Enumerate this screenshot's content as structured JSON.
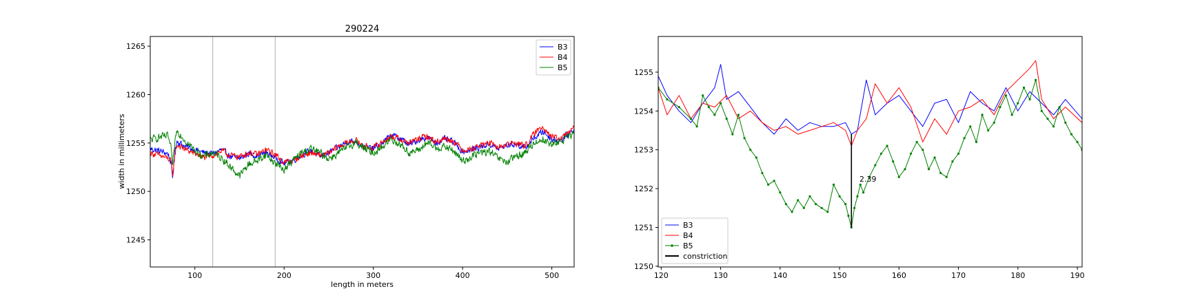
{
  "chart_data": [
    {
      "type": "line",
      "title": "290224",
      "xlabel": "length in meters",
      "ylabel": "width in millimeters",
      "xlim": [
        50,
        525
      ],
      "ylim": [
        1242.2,
        1266.0
      ],
      "xticks": [
        100,
        200,
        300,
        400,
        500
      ],
      "yticks": [
        1245,
        1250,
        1255,
        1260,
        1265
      ],
      "vlines": [
        120,
        190
      ],
      "legend_position": "top-right",
      "grid": false,
      "series": [
        {
          "name": "B3",
          "color": "#0000ff",
          "x_start": 50,
          "x_end": 525,
          "noise": 0.45,
          "x": [
            50,
            60,
            70,
            73,
            75,
            78,
            80,
            90,
            100,
            110,
            120,
            130,
            140,
            150,
            160,
            170,
            180,
            190,
            200,
            210,
            220,
            230,
            240,
            250,
            260,
            270,
            280,
            290,
            300,
            310,
            320,
            330,
            340,
            350,
            360,
            370,
            380,
            390,
            400,
            410,
            420,
            430,
            440,
            450,
            460,
            470,
            480,
            490,
            500,
            510,
            525
          ],
          "y": [
            1254.4,
            1254.2,
            1253.9,
            1253.0,
            1251.4,
            1254.5,
            1255.2,
            1254.6,
            1254.3,
            1254.0,
            1253.9,
            1254.3,
            1253.6,
            1253.4,
            1253.9,
            1253.7,
            1254.0,
            1253.5,
            1252.9,
            1253.2,
            1253.8,
            1254.2,
            1253.6,
            1254.0,
            1254.5,
            1255.1,
            1255.2,
            1254.6,
            1254.4,
            1255.0,
            1255.8,
            1255.5,
            1254.8,
            1255.3,
            1255.6,
            1255.0,
            1255.4,
            1255.1,
            1254.1,
            1254.3,
            1254.6,
            1254.9,
            1254.4,
            1254.8,
            1254.9,
            1254.5,
            1255.5,
            1256.2,
            1255.4,
            1255.3,
            1256.4
          ]
        },
        {
          "name": "B4",
          "color": "#ff0000",
          "x_start": 50,
          "x_end": 525,
          "noise": 0.45,
          "x": [
            50,
            60,
            70,
            73,
            75,
            78,
            80,
            90,
            100,
            110,
            120,
            130,
            140,
            150,
            160,
            170,
            180,
            190,
            200,
            210,
            220,
            230,
            240,
            250,
            260,
            270,
            280,
            290,
            300,
            310,
            320,
            330,
            340,
            350,
            360,
            370,
            380,
            390,
            400,
            410,
            420,
            430,
            440,
            450,
            460,
            470,
            480,
            490,
            500,
            510,
            525
          ],
          "y": [
            1254.0,
            1253.7,
            1253.4,
            1253.1,
            1251.7,
            1254.0,
            1254.8,
            1254.3,
            1253.9,
            1253.5,
            1253.7,
            1254.2,
            1253.7,
            1253.6,
            1254.0,
            1253.8,
            1254.3,
            1253.8,
            1253.0,
            1253.2,
            1253.7,
            1254.0,
            1253.7,
            1253.9,
            1254.6,
            1255.0,
            1255.3,
            1254.6,
            1254.5,
            1255.1,
            1255.7,
            1255.4,
            1255.0,
            1255.4,
            1255.7,
            1255.1,
            1255.5,
            1255.2,
            1254.3,
            1254.4,
            1254.8,
            1255.0,
            1254.5,
            1254.9,
            1255.0,
            1254.7,
            1255.9,
            1256.8,
            1255.6,
            1255.4,
            1256.6
          ]
        },
        {
          "name": "B5",
          "color": "#008000",
          "x_start": 50,
          "x_end": 525,
          "noise": 0.55,
          "x": [
            50,
            60,
            70,
            73,
            75,
            78,
            80,
            90,
            100,
            110,
            120,
            130,
            140,
            150,
            160,
            170,
            180,
            190,
            200,
            210,
            220,
            230,
            240,
            250,
            260,
            270,
            280,
            290,
            300,
            310,
            320,
            330,
            340,
            350,
            360,
            370,
            380,
            390,
            400,
            410,
            420,
            430,
            440,
            450,
            460,
            470,
            480,
            490,
            500,
            510,
            525
          ],
          "y": [
            1255.3,
            1255.6,
            1255.7,
            1254.5,
            1252.6,
            1255.4,
            1256.3,
            1255.2,
            1254.2,
            1253.6,
            1254.0,
            1253.5,
            1252.5,
            1251.6,
            1252.8,
            1253.2,
            1253.8,
            1252.9,
            1252.3,
            1253.2,
            1254.0,
            1254.4,
            1254.0,
            1253.4,
            1253.9,
            1254.5,
            1255.1,
            1254.4,
            1254.0,
            1254.6,
            1255.4,
            1254.9,
            1254.0,
            1254.2,
            1255.0,
            1254.5,
            1254.6,
            1254.2,
            1253.1,
            1253.6,
            1254.0,
            1254.1,
            1253.4,
            1253.0,
            1253.6,
            1254.0,
            1255.0,
            1255.4,
            1254.8,
            1255.2,
            1255.9
          ]
        }
      ]
    },
    {
      "type": "line",
      "title": "",
      "xlabel": "",
      "ylabel": "",
      "xlim": [
        119.5,
        190.8
      ],
      "ylim": [
        1249.98,
        1255.92
      ],
      "xticks": [
        120,
        130,
        140,
        150,
        160,
        170,
        180,
        190
      ],
      "yticks": [
        1250,
        1251,
        1252,
        1253,
        1254,
        1255
      ],
      "legend_position": "bottom-left",
      "grid": false,
      "annotation": {
        "text": "2.39",
        "x": 152.8,
        "y": 1252.2
      },
      "series": [
        {
          "name": "B3",
          "color": "#0000ff",
          "marker": false,
          "x": [
            119.5,
            121,
            123,
            125,
            127,
            129,
            130,
            131,
            133,
            135,
            137,
            139,
            141,
            143,
            145,
            147,
            149,
            151,
            152,
            153,
            154.5,
            156,
            158,
            160,
            162,
            164,
            166,
            168,
            170,
            172,
            174,
            176,
            178,
            180,
            182,
            184,
            186,
            188,
            190.8
          ],
          "y": [
            1254.9,
            1254.4,
            1254.0,
            1253.7,
            1254.2,
            1254.6,
            1255.2,
            1254.3,
            1254.5,
            1254.1,
            1253.7,
            1253.4,
            1253.8,
            1253.5,
            1253.7,
            1253.6,
            1253.6,
            1253.7,
            1253.4,
            1253.5,
            1254.8,
            1253.9,
            1254.2,
            1254.4,
            1254.0,
            1253.6,
            1254.2,
            1254.3,
            1253.7,
            1254.5,
            1254.2,
            1254.0,
            1254.6,
            1254.0,
            1254.5,
            1254.2,
            1253.9,
            1254.3,
            1253.8
          ]
        },
        {
          "name": "B4",
          "color": "#ff0000",
          "marker": false,
          "x": [
            119.5,
            121,
            123,
            125,
            127,
            129,
            131,
            133,
            135,
            137,
            139,
            141,
            143,
            145,
            147,
            149,
            151,
            152,
            153,
            154.5,
            156,
            158,
            160,
            162,
            164,
            166,
            168,
            170,
            172,
            174,
            176,
            178,
            180,
            182,
            183,
            184,
            186,
            188,
            190.8
          ],
          "y": [
            1254.6,
            1253.9,
            1254.4,
            1253.8,
            1254.2,
            1254.1,
            1254.4,
            1253.8,
            1254.0,
            1253.7,
            1253.5,
            1253.6,
            1253.4,
            1253.5,
            1253.6,
            1253.7,
            1253.5,
            1253.1,
            1253.5,
            1253.8,
            1254.7,
            1254.2,
            1254.6,
            1254.1,
            1253.2,
            1253.8,
            1253.4,
            1254.0,
            1254.1,
            1254.3,
            1253.9,
            1254.5,
            1254.8,
            1255.1,
            1255.3,
            1254.3,
            1253.8,
            1254.1,
            1253.7
          ]
        },
        {
          "name": "B5",
          "color": "#008000",
          "marker": true,
          "x": [
            119.5,
            121,
            123,
            125,
            126,
            127,
            128,
            129,
            130,
            131,
            132,
            133,
            134,
            135,
            136,
            137,
            138,
            139,
            140,
            141,
            142,
            143,
            144,
            145,
            146,
            147,
            148,
            149,
            150,
            151,
            151.5,
            152,
            152.5,
            153,
            153.5,
            154,
            155,
            156,
            157,
            158,
            159,
            160,
            161,
            162,
            163,
            164,
            165,
            166,
            167,
            168,
            169,
            170,
            171,
            172,
            173,
            174,
            175,
            176,
            177,
            178,
            179,
            180,
            181,
            182,
            183,
            184,
            185,
            186,
            187,
            188,
            189,
            190,
            190.8
          ],
          "y": [
            1254.6,
            1254.3,
            1254.1,
            1253.8,
            1253.6,
            1254.4,
            1254.1,
            1253.9,
            1254.2,
            1253.8,
            1253.4,
            1253.9,
            1253.3,
            1253.0,
            1252.8,
            1252.4,
            1252.1,
            1252.2,
            1251.9,
            1251.6,
            1251.4,
            1251.7,
            1251.5,
            1251.8,
            1251.6,
            1251.5,
            1251.4,
            1252.1,
            1251.8,
            1251.6,
            1251.3,
            1251.0,
            1251.5,
            1251.8,
            1252.1,
            1251.9,
            1252.3,
            1252.6,
            1252.9,
            1253.1,
            1252.7,
            1252.3,
            1252.5,
            1252.9,
            1253.2,
            1253.0,
            1252.5,
            1252.8,
            1252.4,
            1252.3,
            1252.7,
            1252.9,
            1253.3,
            1253.6,
            1253.2,
            1253.9,
            1253.5,
            1253.7,
            1254.1,
            1254.4,
            1253.9,
            1254.2,
            1254.6,
            1254.3,
            1254.8,
            1254.0,
            1253.8,
            1253.6,
            1254.1,
            1253.7,
            1253.4,
            1253.2,
            1253.0
          ]
        },
        {
          "name": "constriction",
          "color": "#000000",
          "marker": false,
          "x": [
            152,
            152
          ],
          "y": [
            1253.4,
            1251.0
          ]
        }
      ]
    }
  ]
}
